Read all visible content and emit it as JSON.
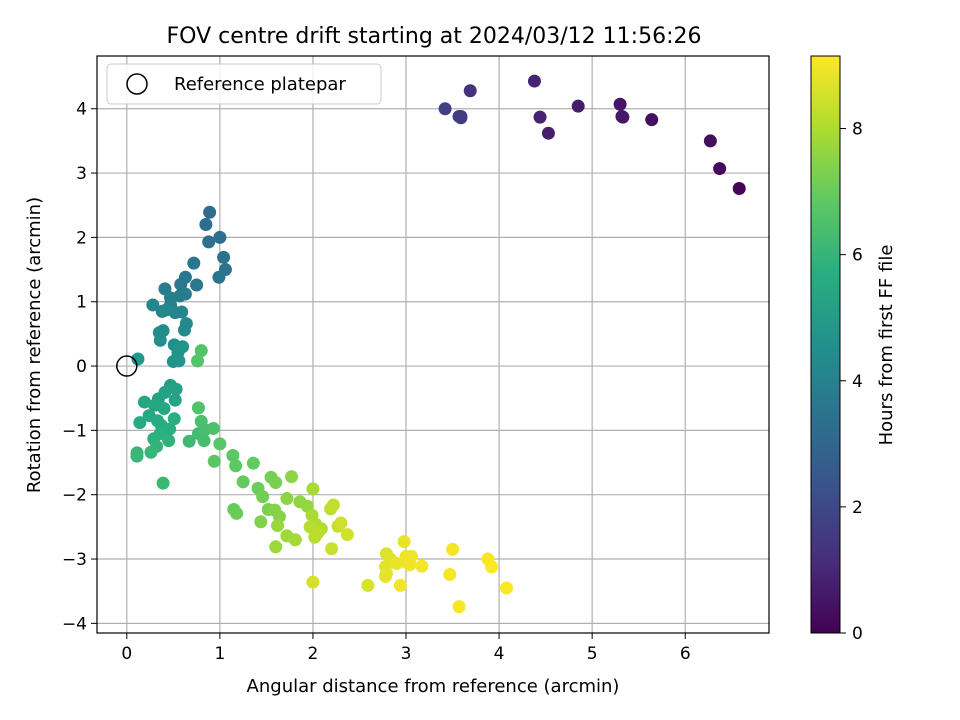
{
  "chart_data": {
    "type": "scatter",
    "title": "FOV centre drift starting at 2024/03/12 11:56:26",
    "xlabel": "Angular distance from reference (arcmin)",
    "ylabel": "Rotation from reference (arcmin)",
    "xlim": [
      -0.32,
      6.9
    ],
    "ylim": [
      -4.15,
      4.82
    ],
    "xticks": [
      "0",
      "1",
      "2",
      "3",
      "4",
      "5",
      "6"
    ],
    "xtick_values": [
      0,
      1,
      2,
      3,
      4,
      5,
      6
    ],
    "yticks": [
      "−4",
      "−3",
      "−2",
      "−1",
      "0",
      "1",
      "2",
      "3",
      "4"
    ],
    "ytick_values": [
      -4,
      -3,
      -2,
      -1,
      0,
      1,
      2,
      3,
      4
    ],
    "grid": true,
    "legend": {
      "position": "top-left",
      "entries": [
        "Reference platepar"
      ]
    },
    "reference_point": {
      "x": 0,
      "y": 0
    },
    "colorbar": {
      "label": "Hours from first FF file",
      "range": [
        0,
        9.15
      ],
      "ticks": [
        "0",
        "2",
        "4",
        "6",
        "8"
      ],
      "tick_values": [
        0,
        2,
        4,
        6,
        8
      ],
      "colormap": "viridis"
    },
    "points": [
      [
        6.58,
        2.76,
        0.1
      ],
      [
        6.37,
        3.07,
        0.2
      ],
      [
        6.27,
        3.5,
        0.3
      ],
      [
        5.64,
        3.83,
        0.4
      ],
      [
        5.32,
        3.88,
        0.5
      ],
      [
        5.3,
        4.07,
        0.55
      ],
      [
        5.33,
        3.87,
        0.6
      ],
      [
        4.85,
        4.04,
        0.7
      ],
      [
        4.53,
        3.62,
        0.8
      ],
      [
        4.44,
        3.87,
        0.85
      ],
      [
        4.38,
        4.43,
        0.9
      ],
      [
        3.69,
        4.28,
        1.3
      ],
      [
        3.59,
        3.88,
        1.5
      ],
      [
        3.57,
        3.88,
        1.55
      ],
      [
        3.59,
        3.86,
        1.6
      ],
      [
        3.42,
        4.0,
        1.7
      ],
      [
        0.89,
        2.39,
        3.2
      ],
      [
        0.85,
        2.2,
        3.25
      ],
      [
        1.0,
        2.0,
        3.3
      ],
      [
        0.88,
        1.93,
        3.35
      ],
      [
        1.04,
        1.69,
        3.4
      ],
      [
        1.06,
        1.5,
        3.45
      ],
      [
        0.99,
        1.38,
        3.5
      ],
      [
        0.72,
        1.6,
        3.55
      ],
      [
        0.75,
        1.26,
        3.6
      ],
      [
        0.58,
        1.27,
        3.65
      ],
      [
        0.63,
        1.38,
        3.7
      ],
      [
        0.63,
        1.12,
        3.75
      ],
      [
        0.41,
        1.2,
        3.8
      ],
      [
        0.57,
        1.09,
        3.85
      ],
      [
        0.47,
        1.06,
        3.9
      ],
      [
        0.47,
        0.95,
        4.0
      ],
      [
        0.38,
        0.85,
        4.05
      ],
      [
        0.28,
        0.95,
        4.1
      ],
      [
        0.52,
        0.83,
        4.15
      ],
      [
        0.59,
        0.84,
        4.2
      ],
      [
        0.42,
        0.87,
        4.25
      ],
      [
        0.64,
        0.66,
        4.3
      ],
      [
        0.62,
        0.56,
        4.35
      ],
      [
        0.39,
        0.55,
        4.4
      ],
      [
        0.35,
        0.52,
        4.45
      ],
      [
        0.36,
        0.4,
        4.5
      ],
      [
        0.51,
        0.33,
        4.55
      ],
      [
        0.55,
        0.21,
        4.6
      ],
      [
        0.5,
        0.07,
        4.65
      ],
      [
        0.56,
        0.08,
        4.7
      ],
      [
        0.6,
        0.3,
        4.75
      ],
      [
        0.12,
        0.11,
        4.8
      ],
      [
        0.47,
        -0.3,
        5.1
      ],
      [
        0.53,
        -0.36,
        5.15
      ],
      [
        0.41,
        -0.41,
        5.2
      ],
      [
        0.34,
        -0.51,
        5.25
      ],
      [
        0.52,
        -0.53,
        5.3
      ],
      [
        0.19,
        -0.56,
        5.35
      ],
      [
        0.3,
        -0.61,
        5.4
      ],
      [
        0.4,
        -0.66,
        5.45
      ],
      [
        0.24,
        -0.77,
        5.5
      ],
      [
        0.14,
        -0.88,
        5.55
      ],
      [
        0.33,
        -0.85,
        5.6
      ],
      [
        0.37,
        -0.92,
        5.65
      ],
      [
        0.46,
        -0.98,
        5.7
      ],
      [
        0.51,
        -0.82,
        5.75
      ],
      [
        0.36,
        -1.05,
        5.8
      ],
      [
        0.29,
        -1.13,
        5.85
      ],
      [
        0.45,
        -1.16,
        5.9
      ],
      [
        0.32,
        -1.25,
        5.95
      ],
      [
        0.26,
        -1.34,
        6.0
      ],
      [
        0.11,
        -1.35,
        6.05
      ],
      [
        0.11,
        -1.4,
        6.1
      ],
      [
        0.39,
        -1.82,
        6.15
      ],
      [
        0.67,
        -1.17,
        6.2
      ],
      [
        0.77,
        -1.05,
        6.3
      ],
      [
        0.83,
        -1.16,
        6.35
      ],
      [
        0.84,
        -0.99,
        6.4
      ],
      [
        0.8,
        -0.86,
        6.45
      ],
      [
        0.93,
        -0.97,
        6.5
      ],
      [
        0.77,
        -0.65,
        6.55
      ],
      [
        0.8,
        0.24,
        6.6
      ],
      [
        0.76,
        0.08,
        6.65
      ],
      [
        1.0,
        -1.21,
        6.7
      ],
      [
        0.94,
        -1.48,
        6.75
      ],
      [
        1.14,
        -1.39,
        6.8
      ],
      [
        1.17,
        -1.55,
        6.85
      ],
      [
        1.36,
        -1.51,
        6.9
      ],
      [
        1.25,
        -1.8,
        6.95
      ],
      [
        1.15,
        -2.23,
        7.0
      ],
      [
        1.18,
        -2.29,
        7.05
      ],
      [
        1.41,
        -1.9,
        7.1
      ],
      [
        1.46,
        -2.03,
        7.15
      ],
      [
        1.55,
        -1.73,
        7.2
      ],
      [
        1.6,
        -1.81,
        7.25
      ],
      [
        1.52,
        -2.23,
        7.3
      ],
      [
        1.44,
        -2.42,
        7.35
      ],
      [
        1.59,
        -2.24,
        7.4
      ],
      [
        1.64,
        -2.34,
        7.45
      ],
      [
        1.72,
        -2.06,
        7.5
      ],
      [
        1.77,
        -1.72,
        7.55
      ],
      [
        1.86,
        -2.11,
        7.6
      ],
      [
        1.94,
        -2.18,
        7.65
      ],
      [
        1.62,
        -2.48,
        7.7
      ],
      [
        1.6,
        -2.81,
        7.75
      ],
      [
        1.72,
        -2.64,
        7.8
      ],
      [
        1.81,
        -2.7,
        7.85
      ],
      [
        2.0,
        -1.91,
        7.9
      ],
      [
        1.99,
        -2.32,
        7.95
      ],
      [
        2.03,
        -2.46,
        8.0
      ],
      [
        2.09,
        -2.53,
        8.05
      ],
      [
        1.97,
        -2.5,
        8.1
      ],
      [
        2.02,
        -2.66,
        8.15
      ],
      [
        2.05,
        -2.6,
        8.2
      ],
      [
        2.19,
        -2.22,
        8.25
      ],
      [
        2.22,
        -2.16,
        8.3
      ],
      [
        2.27,
        -2.49,
        8.35
      ],
      [
        2.2,
        -2.84,
        8.4
      ],
      [
        2.3,
        -2.44,
        8.45
      ],
      [
        2.37,
        -2.62,
        8.5
      ],
      [
        2.0,
        -3.36,
        8.55
      ],
      [
        2.59,
        -3.41,
        8.6
      ],
      [
        2.79,
        -2.92,
        8.65
      ],
      [
        2.83,
        -3.0,
        8.7
      ],
      [
        2.78,
        -3.12,
        8.75
      ],
      [
        2.79,
        -3.22,
        8.8
      ],
      [
        2.78,
        -3.27,
        8.82
      ],
      [
        2.9,
        -3.07,
        8.85
      ],
      [
        2.98,
        -2.73,
        8.87
      ],
      [
        3.0,
        -2.96,
        8.9
      ],
      [
        2.99,
        -3.04,
        8.92
      ],
      [
        3.06,
        -2.96,
        8.94
      ],
      [
        3.04,
        -3.09,
        8.96
      ],
      [
        2.94,
        -3.41,
        8.98
      ],
      [
        3.17,
        -3.11,
        9.0
      ],
      [
        3.5,
        -2.85,
        9.02
      ],
      [
        3.47,
        -3.24,
        9.04
      ],
      [
        3.57,
        -3.74,
        9.06
      ],
      [
        3.88,
        -3.0,
        9.08
      ],
      [
        3.92,
        -3.12,
        9.1
      ],
      [
        4.08,
        -3.45,
        9.12
      ]
    ]
  }
}
